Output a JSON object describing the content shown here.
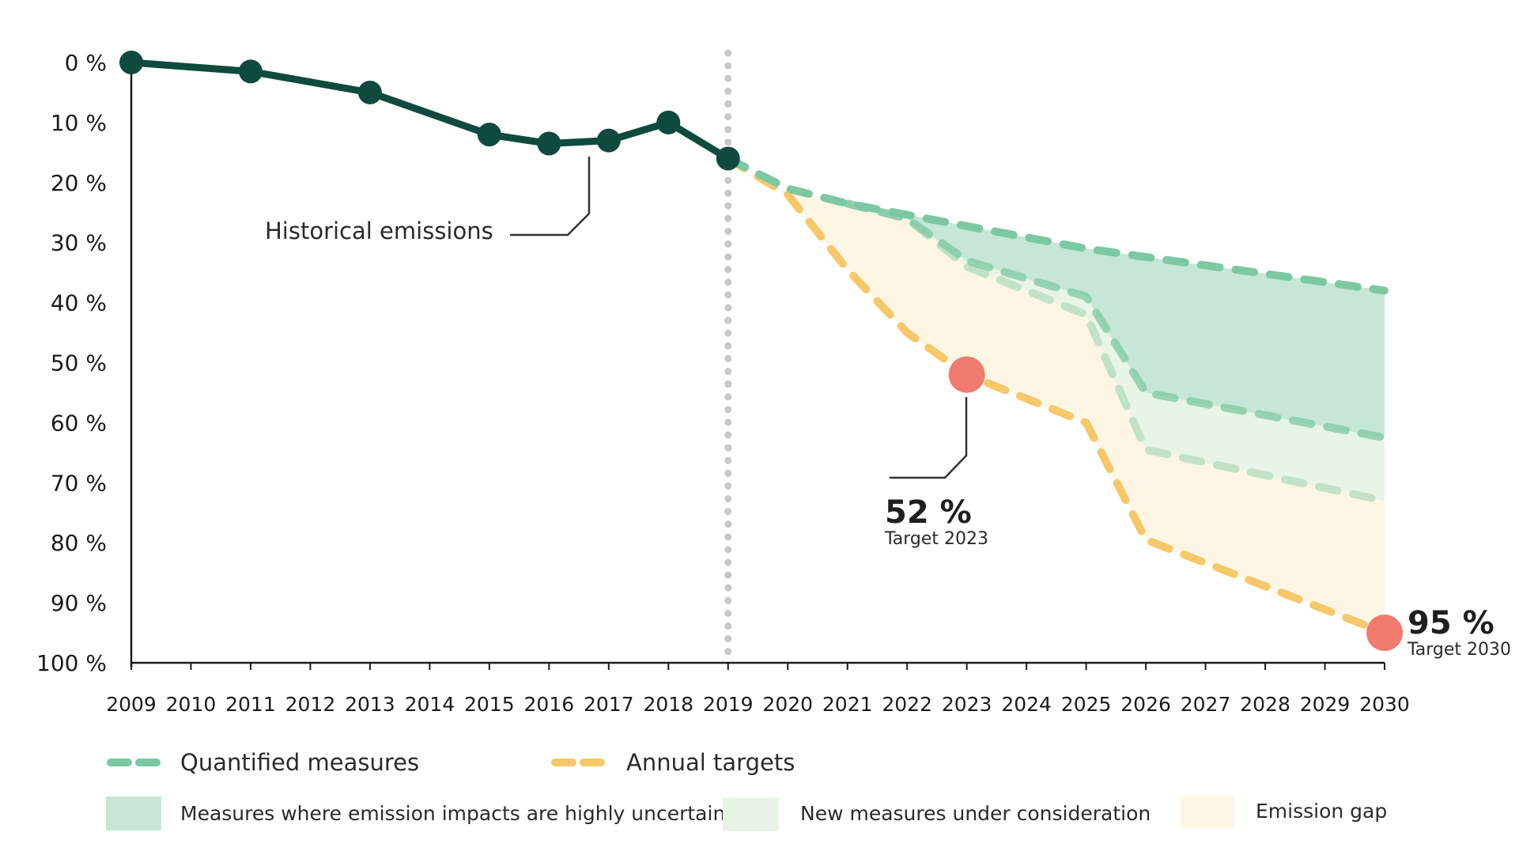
{
  "colors": {
    "historical": "#0f4a3e",
    "quantified": "#7cc8a2",
    "new_measures_line": "#c2e2c8",
    "annual_targets": "#f6c86a",
    "fill_uncertain": "#c6e7d5",
    "fill_new": "#e8f4e6",
    "fill_gap": "#fdf6e5",
    "target_marker": "#f07b6e",
    "divider": "#c8c8c8"
  },
  "annotations": {
    "historical": "Historical emissions",
    "target_2023_value": "52 %",
    "target_2023_label": "Target 2023",
    "target_2030_value": "95 %",
    "target_2030_label": "Target 2030"
  },
  "legend": {
    "quantified": "Quantified measures",
    "annual_targets": "Annual targets",
    "uncertain": "Measures where emission impacts are highly uncertain",
    "new_measures": "New measures under consideration",
    "gap": "Emission gap"
  },
  "chart_data": {
    "type": "line",
    "y_axis": {
      "range": [
        0,
        100
      ],
      "inverted": true,
      "ticks": [
        "0 %",
        "10 %",
        "20 %",
        "30 %",
        "40 %",
        "50 %",
        "60 %",
        "70 %",
        "80 %",
        "90 %",
        "100 %"
      ],
      "tick_values": [
        0,
        10,
        20,
        30,
        40,
        50,
        60,
        70,
        80,
        90,
        100
      ]
    },
    "x_axis": {
      "range": [
        2009,
        2030
      ],
      "ticks": [
        "2009",
        "2010",
        "2011",
        "2012",
        "2013",
        "2014",
        "2015",
        "2016",
        "2017",
        "2018",
        "2019",
        "2020",
        "2021",
        "2022",
        "2023",
        "2024",
        "2025",
        "2026",
        "2027",
        "2028",
        "2029",
        "2030"
      ]
    },
    "divider_year": 2019,
    "series": [
      {
        "name": "Historical emissions",
        "style": "solid-markers",
        "x": [
          2009,
          2011,
          2013,
          2015,
          2016,
          2017,
          2018,
          2019
        ],
        "y": [
          0,
          1.5,
          5,
          12,
          13.5,
          13,
          10,
          16
        ]
      },
      {
        "name": "Quantified measures",
        "style": "dashed",
        "x": [
          2019,
          2020,
          2021,
          2025,
          2030
        ],
        "y": [
          16,
          21,
          23.5,
          31,
          38
        ]
      },
      {
        "name": "Measures where emission impacts are highly uncertain",
        "style": "dashed",
        "x": [
          2021,
          2022,
          2023,
          2025,
          2026,
          2030
        ],
        "y": [
          23.5,
          26,
          33,
          39,
          55,
          62.5
        ]
      },
      {
        "name": "New measures under consideration",
        "style": "dashed",
        "x": [
          2021,
          2022,
          2023,
          2025,
          2026,
          2030
        ],
        "y": [
          23.5,
          26,
          34,
          42,
          64.5,
          73
        ]
      },
      {
        "name": "Annual targets",
        "style": "dashed",
        "x": [
          2019,
          2020,
          2021,
          2022,
          2023,
          2025,
          2026,
          2030
        ],
        "y": [
          16,
          22,
          34.5,
          45,
          52,
          60,
          79.5,
          95
        ]
      }
    ],
    "targets": [
      {
        "x": 2023,
        "y": 52
      },
      {
        "x": 2030,
        "y": 95
      }
    ]
  }
}
